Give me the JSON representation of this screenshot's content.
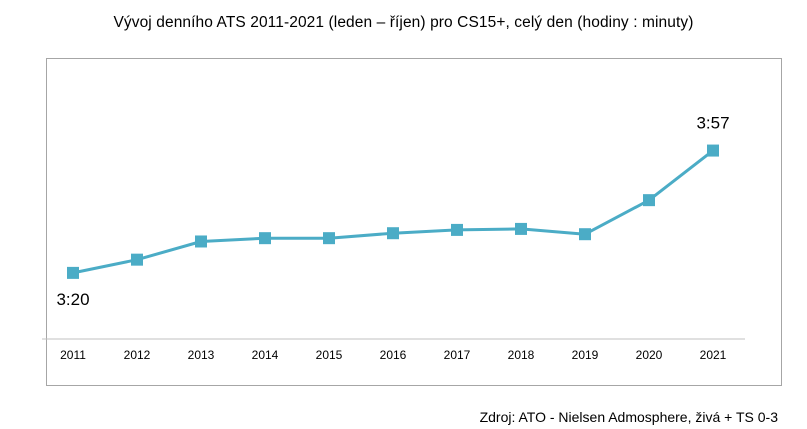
{
  "title": "Vývoj denního ATS 2011-2021 (leden – říjen) pro CS15+,  celý den (hodiny : minuty)",
  "source": "Zdroj: ATO - Nielsen Admosphere, živá + TS 0-3",
  "colors": {
    "series": "#4bacc6",
    "axis": "#c0c0c0",
    "frame": "#a6a6a6"
  },
  "chart_data": {
    "type": "line",
    "title": "Vývoj denního ATS 2011-2021 (leden – říjen) pro CS15+,  celý den (hodiny : minuty)",
    "xlabel": "",
    "ylabel": "",
    "categories": [
      "2011",
      "2012",
      "2013",
      "2014",
      "2015",
      "2016",
      "2017",
      "2018",
      "2019",
      "2020",
      "2021"
    ],
    "series": [
      {
        "values_minutes": [
          200,
          204,
          209.5,
          210.5,
          210.5,
          212,
          213,
          213.3,
          211.7,
          222,
          237
        ]
      }
    ],
    "data_labels": [
      {
        "index": 0,
        "text": "3:20",
        "position": "below"
      },
      {
        "index": 10,
        "text": "3:57",
        "position": "above"
      }
    ],
    "ylim_minutes": [
      180,
      265
    ],
    "grid": false,
    "legend": "none",
    "marker": "square"
  }
}
